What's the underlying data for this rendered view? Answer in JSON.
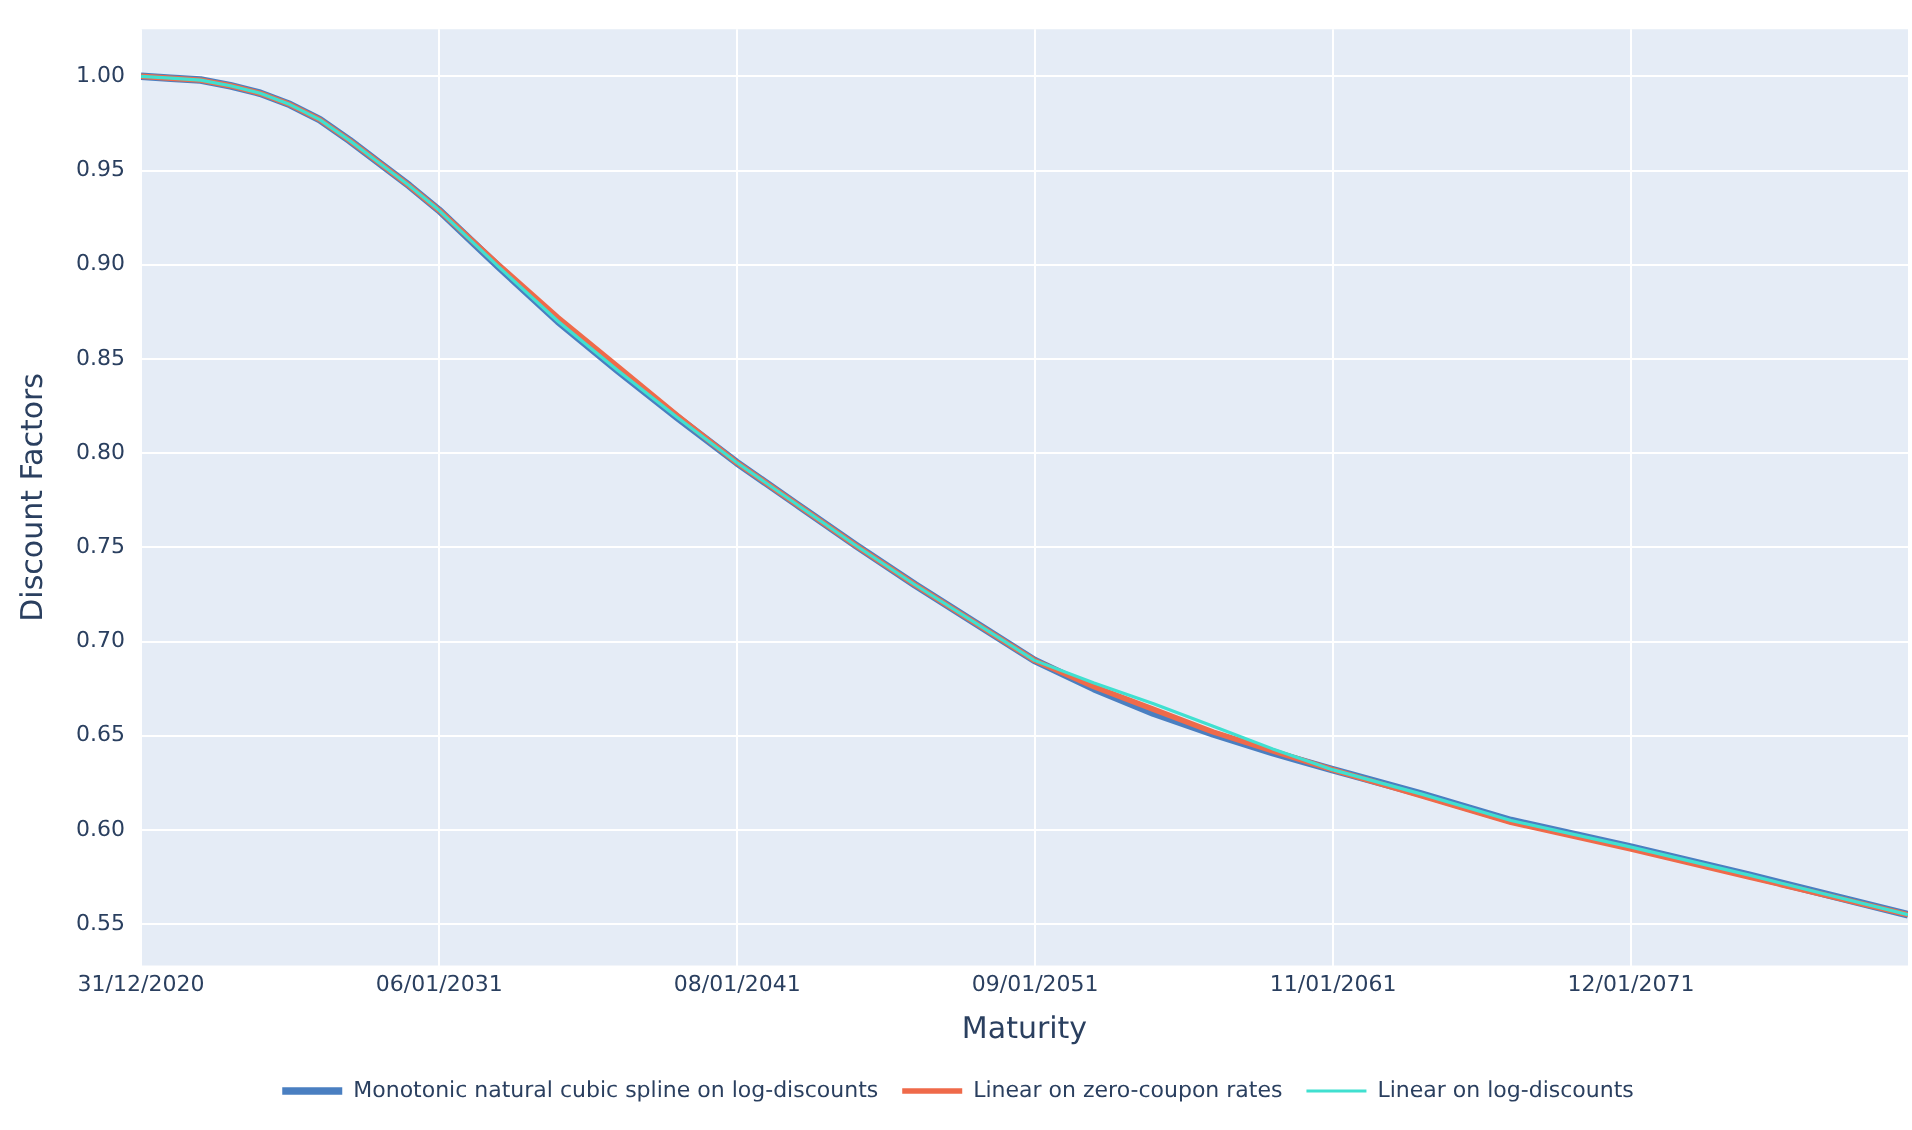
{
  "chart_data": {
    "type": "line",
    "xlabel": "Maturity",
    "ylabel": "Discount Factors",
    "x": [
      "2020-12-31",
      "2022-01-01",
      "2023-01-01",
      "2024-01-01",
      "2025-01-01",
      "2026-01-01",
      "2027-01-01",
      "2028-01-01",
      "2029-01-01",
      "2030-01-01",
      "2031-01-01",
      "2033-01-01",
      "2035-01-01",
      "2037-01-01",
      "2039-01-01",
      "2041-01-01",
      "2043-01-01",
      "2045-01-01",
      "2047-01-01",
      "2049-01-01",
      "2051-01-01",
      "2053-01-01",
      "2055-01-01",
      "2057-01-01",
      "2059-01-01",
      "2061-01-01",
      "2064-01-01",
      "2067-01-01",
      "2071-01-01",
      "2075-01-01",
      "2080-05-01"
    ],
    "series": [
      {
        "name": "Monotonic natural cubic spline on log-discounts",
        "color": "#4a7fc1",
        "values": [
          1.0,
          0.999,
          0.998,
          0.995,
          0.991,
          0.985,
          0.977,
          0.966,
          0.954,
          0.942,
          0.929,
          0.899,
          0.87,
          0.844,
          0.819,
          0.795,
          0.773,
          0.751,
          0.73,
          0.71,
          0.69,
          0.675,
          0.662,
          0.651,
          0.641,
          0.632,
          0.619,
          0.605,
          0.591,
          0.576,
          0.555
        ]
      },
      {
        "name": "Linear on zero-coupon rates",
        "color": "#ef6a4a",
        "values": [
          1.0,
          0.999,
          0.998,
          0.995,
          0.991,
          0.985,
          0.977,
          0.966,
          0.954,
          0.942,
          0.929,
          0.9,
          0.872,
          0.846,
          0.82,
          0.795,
          0.773,
          0.751,
          0.73,
          0.71,
          0.69,
          0.676,
          0.664,
          0.652,
          0.642,
          0.632,
          0.618,
          0.604,
          0.59,
          0.575,
          0.555
        ]
      },
      {
        "name": "Linear on log-discounts",
        "color": "#40e0d0",
        "values": [
          1.0,
          0.999,
          0.998,
          0.995,
          0.991,
          0.985,
          0.977,
          0.966,
          0.954,
          0.942,
          0.929,
          0.899,
          0.87,
          0.844,
          0.819,
          0.795,
          0.773,
          0.751,
          0.73,
          0.71,
          0.69,
          0.678,
          0.667,
          0.655,
          0.643,
          0.632,
          0.619,
          0.605,
          0.591,
          0.576,
          0.555
        ]
      }
    ],
    "xlim": [
      "2020-12-31",
      "2080-05-01"
    ],
    "xticks": [
      {
        "value": "2020-12-31",
        "label": "31/12/2020"
      },
      {
        "value": "2031-01-06",
        "label": "06/01/2031"
      },
      {
        "value": "2041-01-08",
        "label": "08/01/2041"
      },
      {
        "value": "2051-01-09",
        "label": "09/01/2051"
      },
      {
        "value": "2061-01-11",
        "label": "11/01/2061"
      },
      {
        "value": "2071-01-12",
        "label": "12/01/2071"
      }
    ],
    "ylim": [
      0.528,
      1.025
    ],
    "yticks": [
      0.55,
      {
        "value": 0.6,
        "label": "0.60"
      },
      0.65,
      {
        "value": 0.7,
        "label": "0.70"
      },
      0.75,
      {
        "value": 0.8,
        "label": "0.80"
      },
      0.85,
      {
        "value": 0.9,
        "label": "0.90"
      },
      0.95,
      {
        "value": 1,
        "label": "1.00"
      }
    ],
    "grid": true,
    "legend": "bottom",
    "marker": "none",
    "line_style": "solid"
  }
}
